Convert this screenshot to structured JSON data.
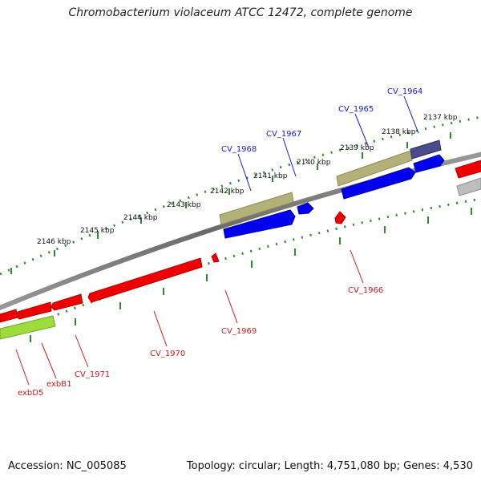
{
  "title": "Chromobacterium violaceum ATCC 12472, complete genome",
  "footer": {
    "accession": "Accession: NC_005085",
    "topology": "Topology: circular; Length: 4,751,080 bp; Genes: 4,530"
  },
  "scale_labels": [
    "2137 kbp",
    "2138 kbp",
    "2139 kbp",
    "2140 kbp",
    "2141 kbp",
    "2142 kbp",
    "2143 kbp",
    "2144 kbp",
    "2145 kbp",
    "2146 kbp"
  ],
  "gene_labels_forward": [
    "CV_1964",
    "CV_1965",
    "CV_1967",
    "CV_1968"
  ],
  "gene_labels_reverse": [
    "CV_1966",
    "CV_1969",
    "CV_1970",
    "CV_1971",
    "exbB1",
    "exbD5"
  ],
  "colors": {
    "forward_gene": "#0000ee",
    "reverse_gene": "#ee0000",
    "forward_label": "#1a1acc",
    "reverse_label": "#cc1a1a",
    "olive_feature": "#b4b07a",
    "purple_feature": "#4b4a8a",
    "lime_feature": "#9edc3c",
    "gray_feature": "#bdbdbd",
    "backbone": "#808080",
    "ticks": "#2e8b2e"
  }
}
